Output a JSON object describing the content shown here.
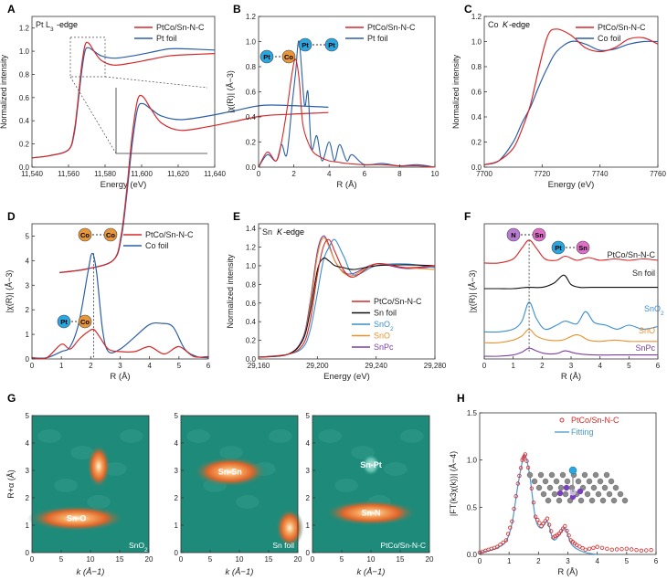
{
  "figure": {
    "panels": [
      {
        "letter": "A",
        "title": "Pt L3-edge",
        "xlabel": "Energy (eV)",
        "ylabel": "Normalized intensity",
        "xticks": [
          "11,540",
          "11,560",
          "11,580",
          "11,600",
          "11,620",
          "11,640"
        ],
        "yticks": [
          "0.0",
          "0.2",
          "0.4",
          "0.6",
          "0.8",
          "1.0",
          "1.2"
        ],
        "legend": [
          "PtCo/Sn-N-C",
          "Pt foil"
        ]
      },
      {
        "letter": "B",
        "title": "",
        "xlabel": "R (Å)",
        "ylabel": "|χ(R)| (Å−3)",
        "xticks": [
          "0",
          "2",
          "4",
          "6",
          "8",
          "10"
        ],
        "yticks": [
          "0.0",
          "0.2",
          "0.4",
          "0.6",
          "0.8",
          "1.0",
          "1.2"
        ],
        "legend": [
          "PtCo/Sn-N-C",
          "Pt foil"
        ]
      },
      {
        "letter": "C",
        "title": "Co K-edge",
        "xlabel": "Energy (eV)",
        "ylabel": "Normalized intensity",
        "xticks": [
          "7700",
          "7720",
          "7740",
          "7760"
        ],
        "yticks": [
          "0.0",
          "0.2",
          "0.4",
          "0.6",
          "0.8",
          "1.0",
          "1.2"
        ],
        "legend": [
          "PtCo/Sn-N-C",
          "Co foil"
        ]
      },
      {
        "letter": "D",
        "title": "",
        "xlabel": "R (Å)",
        "ylabel": "|χ(R)| (Å−3)",
        "xticks": [
          "0",
          "1",
          "2",
          "3",
          "4",
          "5",
          "6"
        ],
        "yticks": [
          "0",
          "1",
          "2",
          "3",
          "4",
          "5"
        ],
        "legend": [
          "PtCo/Sn-N-C",
          "Co foil"
        ]
      },
      {
        "letter": "E",
        "title": "Sn K-edge",
        "xlabel": "Energy (eV)",
        "ylabel": "Normalized intensity",
        "xticks": [
          "29,160",
          "29,200",
          "29,240",
          "29,280"
        ],
        "yticks": [
          "0.0",
          "0.2",
          "0.4",
          "0.6",
          "0.8",
          "1.0",
          "1.2",
          "1.4"
        ],
        "legend": [
          "PtCo/Sn-N-C",
          "Sn foil",
          "SnO2",
          "SnO",
          "SnPc"
        ]
      },
      {
        "letter": "F",
        "title": "",
        "xlabel": "R (Å)",
        "ylabel": "|χ(R)| (Å−3)",
        "xticks": [
          "0",
          "1",
          "2",
          "3",
          "4",
          "5",
          "6"
        ],
        "yticks": [],
        "labels": [
          "PtCo/Sn-N-C",
          "Sn foil",
          "SnO2",
          "SnO",
          "SnPc"
        ]
      },
      {
        "letter": "G",
        "title": "",
        "xlabel": "k (Å−1)",
        "ylabel": "R+α (Å)",
        "xticks": [
          "0",
          "5",
          "10",
          "15",
          "20"
        ],
        "yticks": [
          "0",
          "1",
          "2",
          "3",
          "4",
          "5"
        ],
        "maps": [
          {
            "name": "SnO2",
            "spots": [
              "Sn-O"
            ]
          },
          {
            "name": "Sn foil",
            "spots": [
              "Sn-Sn"
            ]
          },
          {
            "name": "PtCo/Sn-N-C",
            "spots": [
              "Sn-Pt",
              "Sn-N"
            ]
          }
        ]
      },
      {
        "letter": "H",
        "title": "",
        "xlabel": "R (Å)",
        "ylabel": "|FT(k3χ(k))| (Å−4)",
        "xticks": [
          "0",
          "1",
          "2",
          "3",
          "4",
          "5",
          "6"
        ],
        "yticks": [
          "0.0",
          "0.5",
          "1.0",
          "1.5"
        ],
        "legend": [
          "PtCo/Sn-N-C",
          "Fitting"
        ]
      }
    ],
    "bubbles": {
      "B": [
        [
          "Pt",
          "Co"
        ],
        [
          "Pt",
          "Pt"
        ]
      ],
      "D": [
        [
          "Co",
          "Co"
        ],
        [
          "Pt",
          "Co"
        ]
      ],
      "F": [
        [
          "N",
          "Sn"
        ],
        [
          "Pt",
          "Sn"
        ]
      ]
    }
  },
  "colors": {
    "red": "#d62728",
    "blue": "#2a5fa8",
    "black": "#111111",
    "sno2": "#3a8fd0",
    "sno": "#e8922e",
    "snpc": "#7b3fa0",
    "fit_line": "#4a98cf",
    "teal_bg": "#1d8a7a",
    "orange_hot": "#e0652a"
  },
  "chart_data": [
    {
      "panel": "A",
      "type": "line",
      "xlim": [
        11540,
        11640
      ],
      "ylim": [
        0,
        1.3
      ],
      "series": [
        {
          "name": "PtCo/Sn-N-C",
          "x": [
            11540,
            11550,
            11560,
            11563,
            11565,
            11567,
            11569,
            11571,
            11574,
            11578,
            11585,
            11595,
            11605,
            11615,
            11625,
            11640
          ],
          "y": [
            0.08,
            0.1,
            0.15,
            0.3,
            0.55,
            0.85,
            1.05,
            1.07,
            1.0,
            0.92,
            0.88,
            0.9,
            0.93,
            0.96,
            0.97,
            0.98
          ]
        },
        {
          "name": "Pt foil",
          "x": [
            11540,
            11550,
            11560,
            11563,
            11565,
            11567,
            11569,
            11571,
            11574,
            11578,
            11585,
            11595,
            11605,
            11615,
            11625,
            11640
          ],
          "y": [
            0.08,
            0.1,
            0.15,
            0.28,
            0.52,
            0.8,
            1.0,
            1.03,
            1.0,
            0.96,
            0.94,
            0.96,
            0.99,
            1.02,
            1.02,
            1.01
          ]
        }
      ]
    },
    {
      "panel": "B",
      "type": "line",
      "xlim": [
        0,
        10
      ],
      "ylim": [
        0,
        1.2
      ],
      "series": [
        {
          "name": "PtCo/Sn-N-C",
          "x": [
            0,
            0.5,
            1,
            1.3,
            1.6,
            1.9,
            2.1,
            2.3,
            2.5,
            2.8,
            3.1,
            3.5,
            4,
            4.5,
            5,
            6,
            7,
            8,
            9,
            10
          ],
          "y": [
            0.0,
            0.12,
            0.05,
            0.2,
            0.45,
            0.75,
            0.86,
            0.7,
            0.35,
            0.2,
            0.12,
            0.08,
            0.05,
            0.04,
            0.03,
            0.02,
            0.02,
            0.01,
            0.01,
            0.0
          ]
        },
        {
          "name": "Pt foil",
          "x": [
            0,
            0.5,
            1,
            1.3,
            1.6,
            1.9,
            2.1,
            2.3,
            2.6,
            2.8,
            3.0,
            3.3,
            3.6,
            4.0,
            4.3,
            4.6,
            5.0,
            5.3,
            6,
            7,
            8,
            9,
            10
          ],
          "y": [
            0.0,
            0.1,
            0.05,
            0.18,
            0.1,
            0.5,
            0.75,
            1.0,
            0.5,
            0.6,
            0.15,
            0.25,
            0.05,
            0.2,
            0.05,
            0.18,
            0.05,
            0.1,
            0.02,
            0.03,
            0.01,
            0.02,
            0.0
          ]
        }
      ]
    },
    {
      "panel": "C",
      "type": "line",
      "xlim": [
        7700,
        7760
      ],
      "ylim": [
        0,
        1.2
      ],
      "series": [
        {
          "name": "PtCo/Sn-N-C",
          "x": [
            7700,
            7705,
            7710,
            7713,
            7716,
            7719,
            7722,
            7725,
            7730,
            7735,
            7740,
            7745,
            7750,
            7755,
            7760
          ],
          "y": [
            0.02,
            0.05,
            0.15,
            0.3,
            0.5,
            0.8,
            1.05,
            1.1,
            1.05,
            0.95,
            0.92,
            0.95,
            1.02,
            1.03,
            0.98
          ]
        },
        {
          "name": "Co foil",
          "x": [
            7700,
            7705,
            7710,
            7713,
            7716,
            7719,
            7722,
            7725,
            7730,
            7735,
            7740,
            7745,
            7750,
            7755,
            7760
          ],
          "y": [
            0.02,
            0.05,
            0.2,
            0.35,
            0.48,
            0.65,
            0.8,
            0.92,
            1.0,
            0.98,
            0.93,
            0.94,
            0.98,
            1.0,
            1.0
          ]
        }
      ]
    },
    {
      "panel": "D",
      "type": "line",
      "xlim": [
        0,
        6
      ],
      "ylim": [
        0,
        5.5
      ],
      "series": [
        {
          "name": "PtCo/Sn-N-C",
          "x": [
            0,
            0.5,
            1,
            1.3,
            1.6,
            1.9,
            2.1,
            2.3,
            2.6,
            3.0,
            3.5,
            4.0,
            4.5,
            5.0,
            5.5,
            6
          ],
          "y": [
            0.05,
            0.05,
            0.6,
            0.4,
            0.8,
            1.1,
            1.2,
            0.9,
            0.4,
            0.3,
            0.3,
            0.5,
            0.2,
            0.5,
            0.1,
            0.1
          ]
        },
        {
          "name": "Co foil",
          "x": [
            0,
            0.5,
            1,
            1.3,
            1.6,
            1.9,
            2.05,
            2.2,
            2.4,
            2.6,
            3.0,
            3.5,
            4.0,
            4.4,
            4.8,
            5.2,
            5.6,
            6
          ],
          "y": [
            0.05,
            0.05,
            0.3,
            0.5,
            1.5,
            3.5,
            4.3,
            3.5,
            1.2,
            0.3,
            0.4,
            0.9,
            1.4,
            1.45,
            1.3,
            0.4,
            0.1,
            0.05
          ]
        }
      ]
    },
    {
      "panel": "E",
      "type": "line",
      "xlim": [
        29160,
        29280
      ],
      "ylim": [
        0,
        1.45
      ],
      "series": [
        {
          "name": "PtCo/Sn-N-C",
          "x": [
            29160,
            29180,
            29190,
            29195,
            29200,
            29204,
            29208,
            29212,
            29218,
            29225,
            29240,
            29260,
            29280
          ],
          "y": [
            0.02,
            0.05,
            0.15,
            0.4,
            0.9,
            1.2,
            1.28,
            1.15,
            0.95,
            0.88,
            1.02,
            0.98,
            1.0
          ]
        },
        {
          "name": "Sn foil",
          "x": [
            29160,
            29180,
            29190,
            29195,
            29200,
            29204,
            29208,
            29212,
            29218,
            29225,
            29240,
            29260,
            29280
          ],
          "y": [
            0.02,
            0.05,
            0.2,
            0.5,
            0.95,
            1.08,
            1.05,
            1.0,
            0.98,
            0.96,
            1.0,
            1.01,
            1.0
          ]
        },
        {
          "name": "SnO2",
          "x": [
            29160,
            29180,
            29190,
            29195,
            29200,
            29204,
            29208,
            29212,
            29218,
            29225,
            29240,
            29260,
            29280
          ],
          "y": [
            0.02,
            0.05,
            0.12,
            0.3,
            0.7,
            1.05,
            1.2,
            1.28,
            1.1,
            0.9,
            1.0,
            1.02,
            0.98
          ]
        },
        {
          "name": "SnO",
          "x": [
            29160,
            29180,
            29190,
            29195,
            29200,
            29204,
            29208,
            29212,
            29218,
            29225,
            29240,
            29260,
            29280
          ],
          "y": [
            0.02,
            0.05,
            0.2,
            0.55,
            1.1,
            1.3,
            1.2,
            1.05,
            0.92,
            0.9,
            1.02,
            0.98,
            0.96
          ]
        },
        {
          "name": "SnPc",
          "x": [
            29160,
            29180,
            29190,
            29195,
            29200,
            29204,
            29208,
            29212,
            29218,
            29225,
            29240,
            29260,
            29280
          ],
          "y": [
            0.02,
            0.05,
            0.22,
            0.6,
            1.15,
            1.32,
            1.22,
            1.05,
            0.93,
            0.92,
            1.02,
            0.97,
            0.99
          ]
        }
      ]
    },
    {
      "panel": "F",
      "type": "line",
      "xlim": [
        0,
        6
      ],
      "ylim": [
        0,
        1
      ],
      "series": [
        {
          "name": "PtCo/Sn-N-C",
          "x": [
            0,
            0.5,
            1,
            1.3,
            1.55,
            1.8,
            2.1,
            2.5,
            2.8,
            3.2,
            3.6,
            4,
            4.5,
            5,
            5.5,
            6
          ],
          "y": [
            0.71,
            0.71,
            0.74,
            0.82,
            0.88,
            0.82,
            0.74,
            0.73,
            0.76,
            0.73,
            0.75,
            0.73,
            0.74,
            0.73,
            0.74,
            0.73
          ]
        },
        {
          "name": "Sn foil",
          "x": [
            0,
            0.5,
            1,
            1.5,
            2,
            2.4,
            2.75,
            3.0,
            3.3,
            3.7,
            4.2,
            4.8,
            5.4,
            6
          ],
          "y": [
            0.52,
            0.52,
            0.52,
            0.53,
            0.53,
            0.56,
            0.62,
            0.55,
            0.53,
            0.53,
            0.53,
            0.53,
            0.53,
            0.53
          ]
        },
        {
          "name": "SnO2",
          "x": [
            0,
            0.5,
            1,
            1.3,
            1.55,
            1.8,
            2.1,
            2.5,
            2.8,
            3.2,
            3.5,
            3.8,
            4.2,
            4.6,
            5,
            5.5,
            6
          ],
          "y": [
            0.2,
            0.2,
            0.22,
            0.28,
            0.42,
            0.3,
            0.22,
            0.25,
            0.28,
            0.26,
            0.35,
            0.27,
            0.25,
            0.22,
            0.25,
            0.22,
            0.24
          ]
        },
        {
          "name": "SnO",
          "x": [
            0,
            0.5,
            1,
            1.3,
            1.55,
            1.8,
            2.2,
            2.7,
            3.2,
            3.6,
            4.0,
            4.5,
            5,
            5.5,
            6
          ],
          "y": [
            0.12,
            0.12,
            0.14,
            0.17,
            0.22,
            0.17,
            0.14,
            0.14,
            0.18,
            0.14,
            0.13,
            0.14,
            0.13,
            0.13,
            0.13
          ]
        },
        {
          "name": "SnPc",
          "x": [
            0,
            0.5,
            1,
            1.3,
            1.55,
            1.8,
            2.1,
            2.5,
            2.8,
            3.2,
            3.8,
            4.5,
            5,
            5.5,
            6
          ],
          "y": [
            0.02,
            0.02,
            0.03,
            0.05,
            0.08,
            0.06,
            0.04,
            0.04,
            0.06,
            0.04,
            0.03,
            0.03,
            0.03,
            0.03,
            0.03
          ]
        }
      ]
    },
    {
      "panel": "H",
      "type": "line",
      "xlim": [
        0,
        6
      ],
      "ylim": [
        0,
        1.5
      ],
      "series": [
        {
          "name": "PtCo/Sn-N-C",
          "x": [
            0,
            0.3,
            0.6,
            0.9,
            1.1,
            1.3,
            1.45,
            1.55,
            1.7,
            1.9,
            2.1,
            2.3,
            2.5,
            2.7,
            2.9,
            3.1,
            3.3,
            3.6,
            4,
            4.5,
            5,
            5.5,
            6
          ],
          "y": [
            0.02,
            0.05,
            0.08,
            0.15,
            0.35,
            0.75,
            1.0,
            1.06,
            0.85,
            0.4,
            0.3,
            0.38,
            0.18,
            0.22,
            0.3,
            0.15,
            0.1,
            0.05,
            0.08,
            0.05,
            0.06,
            0.04,
            0.05
          ]
        },
        {
          "name": "Fitting",
          "x": [
            0,
            0.3,
            0.6,
            0.9,
            1.1,
            1.3,
            1.45,
            1.55,
            1.7,
            1.9,
            2.1,
            2.3,
            2.5,
            2.7,
            2.9,
            3.1,
            3.3,
            3.6,
            4
          ],
          "y": [
            0.02,
            0.04,
            0.07,
            0.14,
            0.33,
            0.73,
            0.98,
            1.05,
            0.84,
            0.38,
            0.28,
            0.35,
            0.16,
            0.2,
            0.28,
            0.12,
            0.06,
            0.02,
            0.0
          ]
        }
      ]
    }
  ]
}
